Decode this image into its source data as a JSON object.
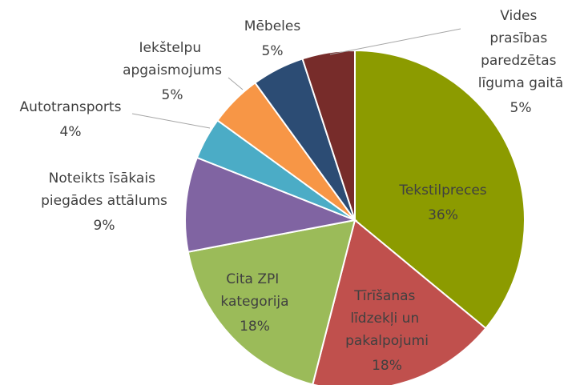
{
  "chart_data": {
    "type": "pie",
    "categories": [
      "Tekstilpreces",
      "Tīrīšanas līdzekļi un pakalpojumi",
      "Cita ZPI kategorija",
      "Noteikts īsākais piegādes attālums",
      "Autotransports",
      "Iekštelpu apgaismojums",
      "Mēbeles",
      "Vides prasības paredzētas līguma gaitā"
    ],
    "values": [
      36,
      18,
      18,
      9,
      4,
      5,
      5,
      5
    ],
    "value_labels": [
      "36%",
      "18%",
      "18%",
      "9%",
      "4%",
      "5%",
      "5%",
      "5%"
    ],
    "colors": [
      "#8c9b00",
      "#c0504d",
      "#9bbb59",
      "#8064a2",
      "#4bacc6",
      "#f79646",
      "#2c4c74",
      "#772c2a"
    ]
  }
}
